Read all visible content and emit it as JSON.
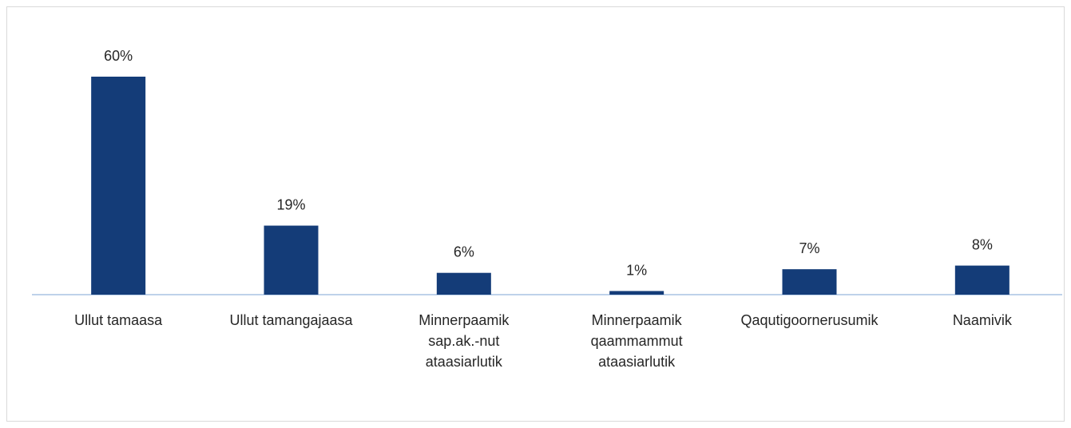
{
  "chart_data": {
    "type": "bar",
    "categories": [
      "Ullut tamaasa",
      "Ullut tamangajaasa",
      "Minnerpaamik\nsap.ak.-nut\nataasiarlutik",
      "Minnerpaamik\nqaammammut\nataasiarlutik",
      "Qaqutigoornerusumik",
      "Naamivik"
    ],
    "values": [
      60,
      19,
      6,
      1,
      7,
      8
    ],
    "value_labels": [
      "60%",
      "19%",
      "6%",
      "1%",
      "7%",
      "8%"
    ],
    "color": "#143c78"
  }
}
